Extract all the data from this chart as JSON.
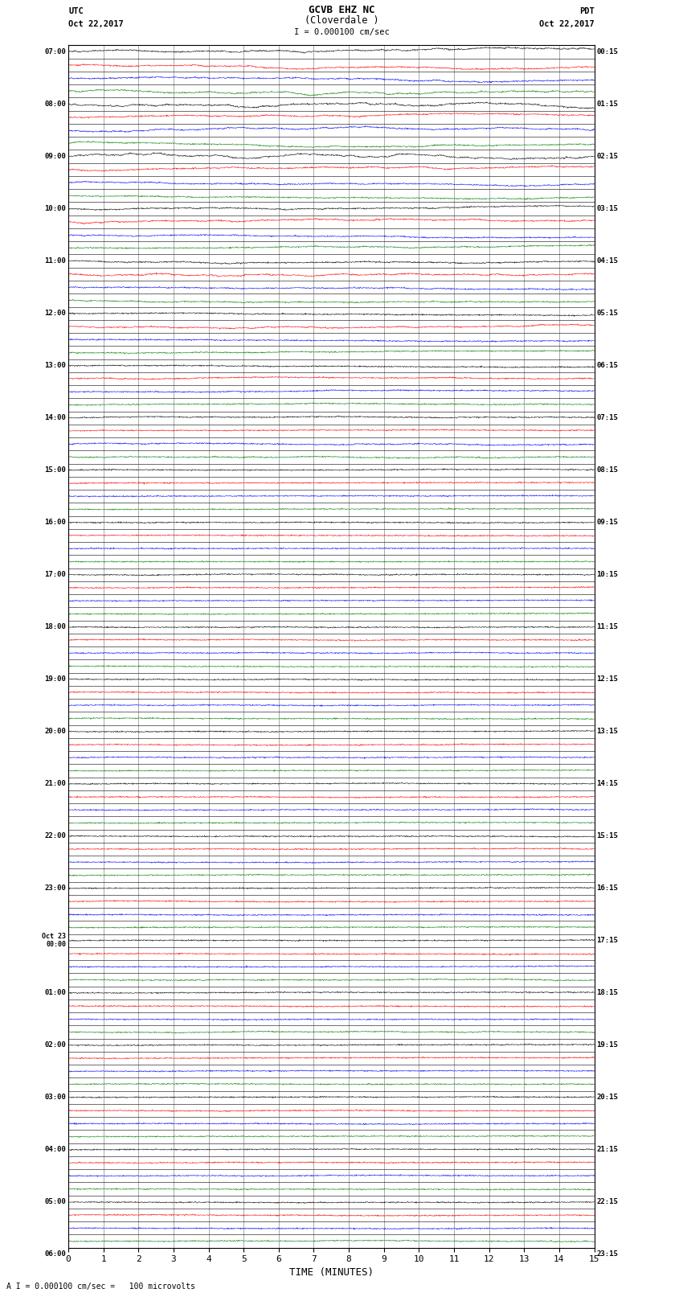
{
  "title_line1": "GCVB EHZ NC",
  "title_line2": "(Cloverdale )",
  "scale_label": "I = 0.000100 cm/sec",
  "bottom_label": "A I = 0.000100 cm/sec =   100 microvolts",
  "xlabel": "TIME (MINUTES)",
  "utc_label": "UTC",
  "utc_date": "Oct 22,2017",
  "pdt_label": "PDT",
  "pdt_date": "Oct 22,2017",
  "left_times_utc": [
    "07:00",
    "",
    "",
    "",
    "08:00",
    "",
    "",
    "",
    "09:00",
    "",
    "",
    "",
    "10:00",
    "",
    "",
    "",
    "11:00",
    "",
    "",
    "",
    "12:00",
    "",
    "",
    "",
    "13:00",
    "",
    "",
    "",
    "14:00",
    "",
    "",
    "",
    "15:00",
    "",
    "",
    "",
    "16:00",
    "",
    "",
    "",
    "17:00",
    "",
    "",
    "",
    "18:00",
    "",
    "",
    "",
    "19:00",
    "",
    "",
    "",
    "20:00",
    "",
    "",
    "",
    "21:00",
    "",
    "",
    "",
    "22:00",
    "",
    "",
    "",
    "23:00",
    "",
    "",
    "",
    "Oct 23\n00:00",
    "",
    "",
    "",
    "01:00",
    "",
    "",
    "",
    "02:00",
    "",
    "",
    "",
    "03:00",
    "",
    "",
    "",
    "04:00",
    "",
    "",
    "",
    "05:00",
    "",
    "",
    "",
    "06:00"
  ],
  "right_times_pdt": [
    "00:15",
    "",
    "",
    "",
    "01:15",
    "",
    "",
    "",
    "02:15",
    "",
    "",
    "",
    "03:15",
    "",
    "",
    "",
    "04:15",
    "",
    "",
    "",
    "05:15",
    "",
    "",
    "",
    "06:15",
    "",
    "",
    "",
    "07:15",
    "",
    "",
    "",
    "08:15",
    "",
    "",
    "",
    "09:15",
    "",
    "",
    "",
    "10:15",
    "",
    "",
    "",
    "11:15",
    "",
    "",
    "",
    "12:15",
    "",
    "",
    "",
    "13:15",
    "",
    "",
    "",
    "14:15",
    "",
    "",
    "",
    "15:15",
    "",
    "",
    "",
    "16:15",
    "",
    "",
    "",
    "17:15",
    "",
    "",
    "",
    "18:15",
    "",
    "",
    "",
    "19:15",
    "",
    "",
    "",
    "20:15",
    "",
    "",
    "",
    "21:15",
    "",
    "",
    "",
    "22:15",
    "",
    "",
    "",
    "23:15"
  ],
  "n_rows": 92,
  "n_minutes": 15,
  "colors_cycle": [
    "black",
    "red",
    "blue",
    "green"
  ],
  "bg_color": "#ffffff",
  "grid_color": "#888888",
  "line_color": "#000000",
  "fig_width": 8.5,
  "fig_height": 16.13,
  "dpi": 100,
  "trace_amplitude": 0.06,
  "drift_amplitude_early": 0.35,
  "drift_amplitude_late": 0.05
}
